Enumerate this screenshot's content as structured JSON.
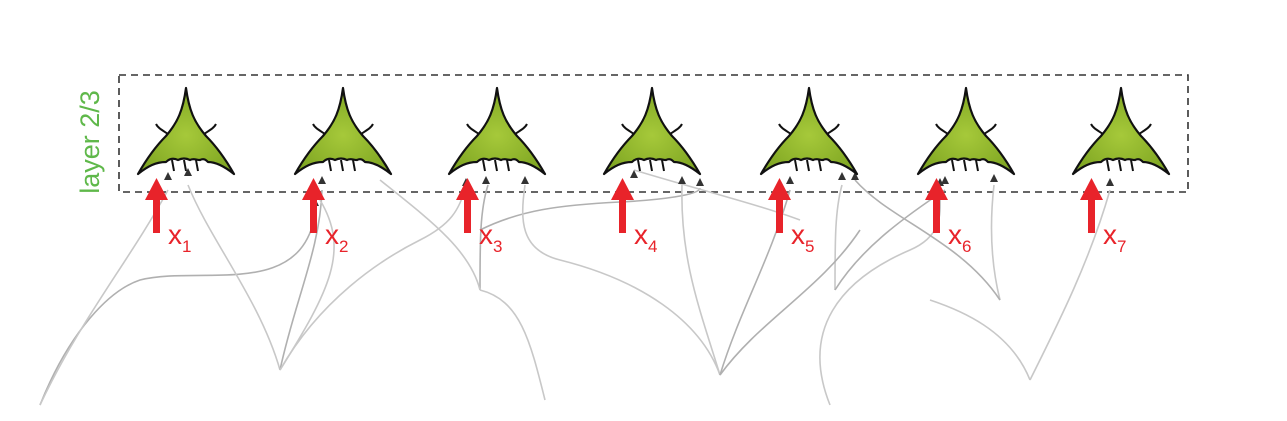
{
  "layer": {
    "label": "layer 2/3"
  },
  "neurons": [
    {
      "id": "n1"
    },
    {
      "id": "n2"
    },
    {
      "id": "n3"
    },
    {
      "id": "n4"
    },
    {
      "id": "n5"
    },
    {
      "id": "n6"
    },
    {
      "id": "n7"
    }
  ],
  "inputs": [
    {
      "var": "x",
      "sub": "1"
    },
    {
      "var": "x",
      "sub": "2"
    },
    {
      "var": "x",
      "sub": "3"
    },
    {
      "var": "x",
      "sub": "4"
    },
    {
      "var": "x",
      "sub": "5"
    },
    {
      "var": "x",
      "sub": "6"
    },
    {
      "var": "x",
      "sub": "7"
    }
  ],
  "colors": {
    "layer_label": "#5fb84a",
    "neuron_fill": "#8fb82a",
    "neuron_fill_dark": "#6e9a1c",
    "input_arrow": "#e8232a",
    "input_text": "#e8232a",
    "axon": "#c4c4c4",
    "axon_dark": "#8a8a8a",
    "box_border": "#333333"
  }
}
